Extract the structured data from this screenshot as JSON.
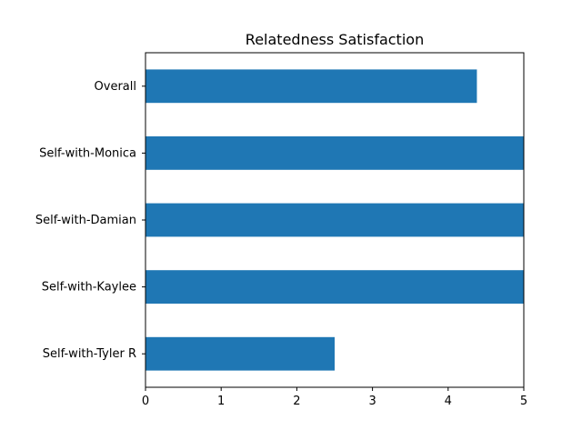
{
  "chart_data": {
    "type": "bar",
    "orientation": "horizontal",
    "title": "Relatedness Satisfaction",
    "xlabel": "",
    "ylabel": "",
    "xlim": [
      0,
      5
    ],
    "xticks": [
      0,
      1,
      2,
      3,
      4,
      5
    ],
    "categories": [
      "Overall",
      "Self-with-Monica",
      "Self-with-Damian",
      "Self-with-Kaylee",
      "Self-with-Tyler R"
    ],
    "values": [
      4.38,
      5,
      5,
      5,
      2.5
    ],
    "bar_color": "#1f77b4",
    "grid": false
  }
}
